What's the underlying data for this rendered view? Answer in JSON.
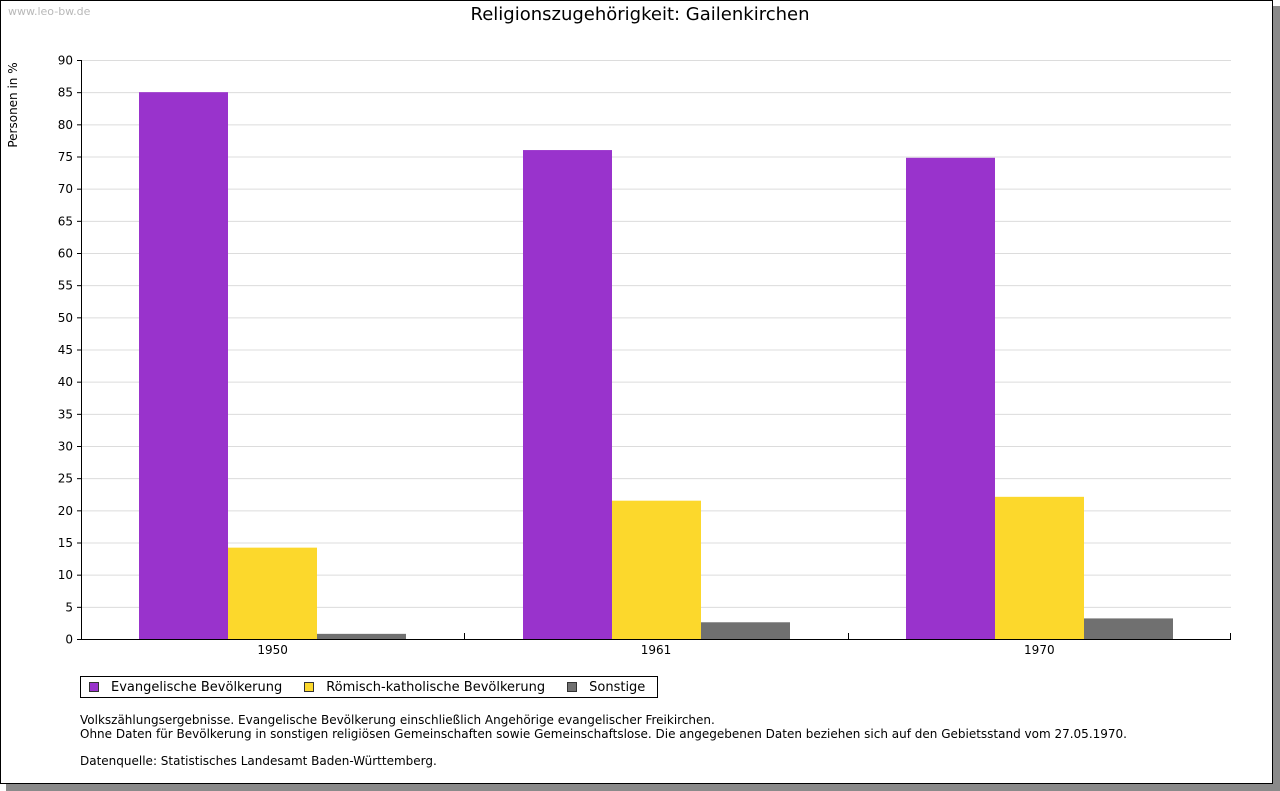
{
  "watermark": "www.leo-bw.de",
  "colors": {
    "evangelisch": "#9933cc",
    "katholisch": "#fcd82c",
    "sonstige": "#707070",
    "grid": "#dcdcdc",
    "axis": "#000000"
  },
  "chart_data": {
    "type": "bar",
    "title": "Religionszugehörigkeit: Gailenkirchen",
    "xlabel": "",
    "ylabel": "Personen in %",
    "ylim": [
      0,
      90
    ],
    "ytick_step": 5,
    "grid": true,
    "categories": [
      "1950",
      "1961",
      "1970"
    ],
    "series": [
      {
        "name": "Evangelische Bevölkerung",
        "values": [
          85.0,
          76.0,
          74.8
        ]
      },
      {
        "name": "Römisch-katholische Bevölkerung",
        "values": [
          14.2,
          21.5,
          22.1
        ]
      },
      {
        "name": "Sonstige",
        "values": [
          0.8,
          2.6,
          3.2
        ]
      }
    ],
    "legend_position": "bottom-left"
  },
  "notes": {
    "line1": "Volkszählungsergebnisse. Evangelische Bevölkerung einschließlich Angehörige evangelischer Freikirchen.",
    "line2": "Ohne Daten für Bevölkerung in sonstigen religiösen Gemeinschaften sowie Gemeinschaftslose. Die angegebenen Daten beziehen sich auf den Gebietsstand vom 27.05.1970.",
    "source": "Datenquelle: Statistisches Landesamt Baden-Württemberg."
  }
}
